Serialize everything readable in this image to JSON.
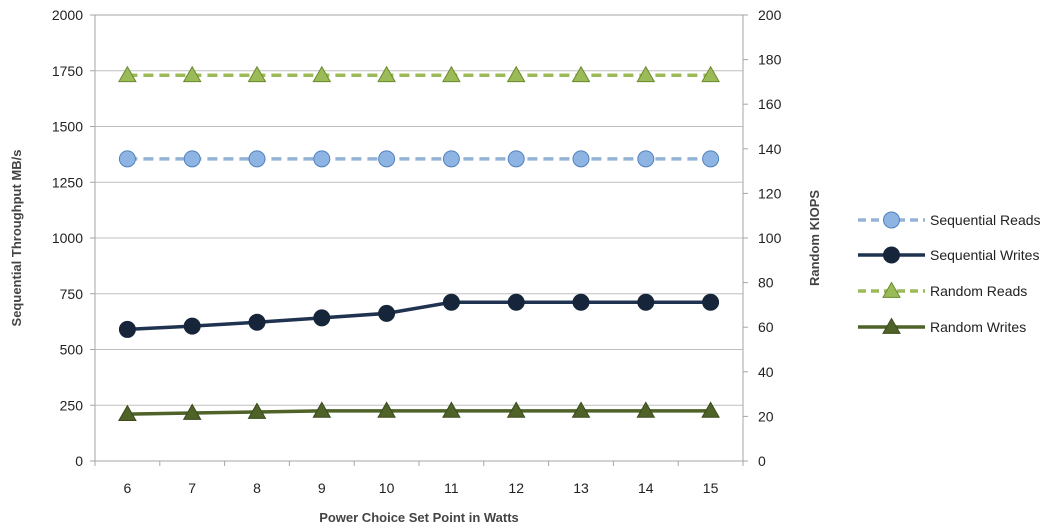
{
  "chart_data": {
    "type": "line",
    "title": "",
    "xlabel": "Power Choice Set Point in Watts",
    "ylabel": "Sequential Throughput MB/s",
    "y2label": "Random KIOPS",
    "categories": [
      "6",
      "7",
      "8",
      "9",
      "10",
      "11",
      "12",
      "13",
      "14",
      "15"
    ],
    "ylim": [
      0,
      2000
    ],
    "y_ticks": [
      "0",
      "250",
      "500",
      "750",
      "1000",
      "1250",
      "1500",
      "1750",
      "2000"
    ],
    "y2lim": [
      0,
      200
    ],
    "y2_ticks": [
      "0",
      "20",
      "40",
      "60",
      "80",
      "100",
      "120",
      "140",
      "160",
      "180",
      "200"
    ],
    "grid": "horizontal",
    "legend_position": "right",
    "series": [
      {
        "name": "Sequential Reads",
        "axis": "left",
        "values": [
          1355,
          1355,
          1355,
          1355,
          1355,
          1355,
          1355,
          1355,
          1355,
          1355
        ],
        "color": "#95b3d7",
        "marker_fill": "#8db4e2",
        "marker_stroke": "#4f81bd",
        "line_style": "dashed",
        "marker": "circle"
      },
      {
        "name": "Sequential Writes",
        "axis": "left",
        "values": [
          590,
          605,
          622,
          642,
          662,
          712,
          712,
          712,
          712,
          712
        ],
        "color": "#1f3350",
        "marker_fill": "#17253a",
        "marker_stroke": "#17253a",
        "line_style": "solid",
        "marker": "circle"
      },
      {
        "name": "Random Reads",
        "axis": "right",
        "values": [
          173,
          173,
          173,
          173,
          173,
          173,
          173,
          173,
          173,
          173
        ],
        "color": "#9bbb59",
        "marker_fill": "#9bbb59",
        "marker_stroke": "#6a8a2c",
        "line_style": "dashed",
        "marker": "triangle"
      },
      {
        "name": "Random Writes",
        "axis": "right",
        "values": [
          21,
          21.5,
          22,
          22.5,
          22.5,
          22.5,
          22.5,
          22.5,
          22.5,
          22.5
        ],
        "color": "#4f6228",
        "marker_fill": "#4f6228",
        "marker_stroke": "#3b4a1e",
        "line_style": "solid",
        "marker": "triangle"
      }
    ]
  }
}
